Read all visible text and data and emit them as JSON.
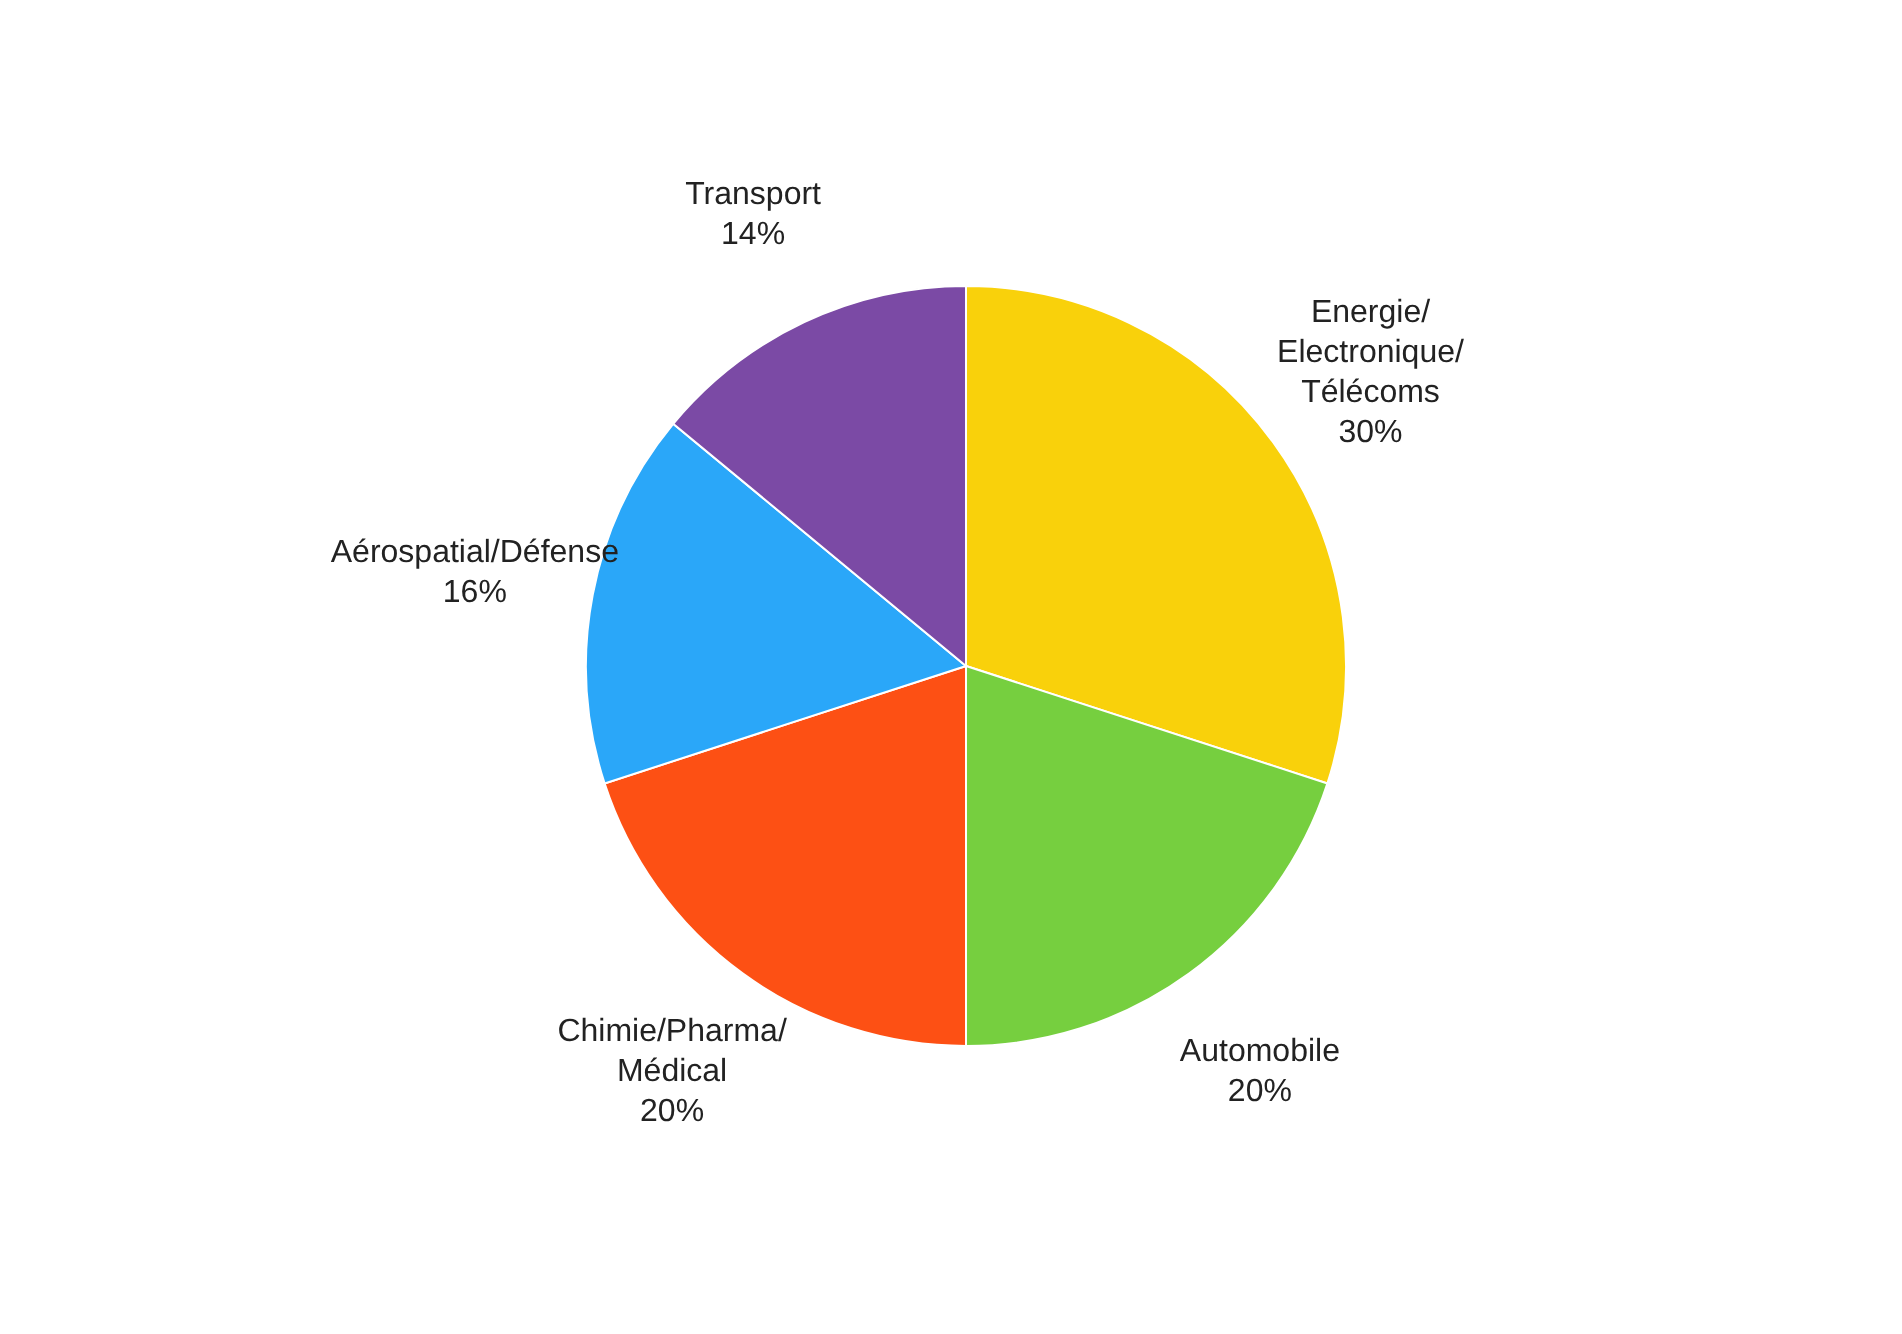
{
  "chart_data": {
    "type": "pie",
    "categories": [
      "Energie/Electronique/Télécoms",
      "Automobile",
      "Chimie/Pharma/Médical",
      "Aérospatial/Défense",
      "Transport"
    ],
    "values": [
      30,
      20,
      20,
      16,
      14
    ],
    "value_labels": [
      "30%",
      "20%",
      "20%",
      "16%",
      "14%"
    ],
    "colors": [
      "#f9d10b",
      "#76cf3f",
      "#fd5014",
      "#2aa7f9",
      "#7b4aa5"
    ],
    "legend": false
  }
}
